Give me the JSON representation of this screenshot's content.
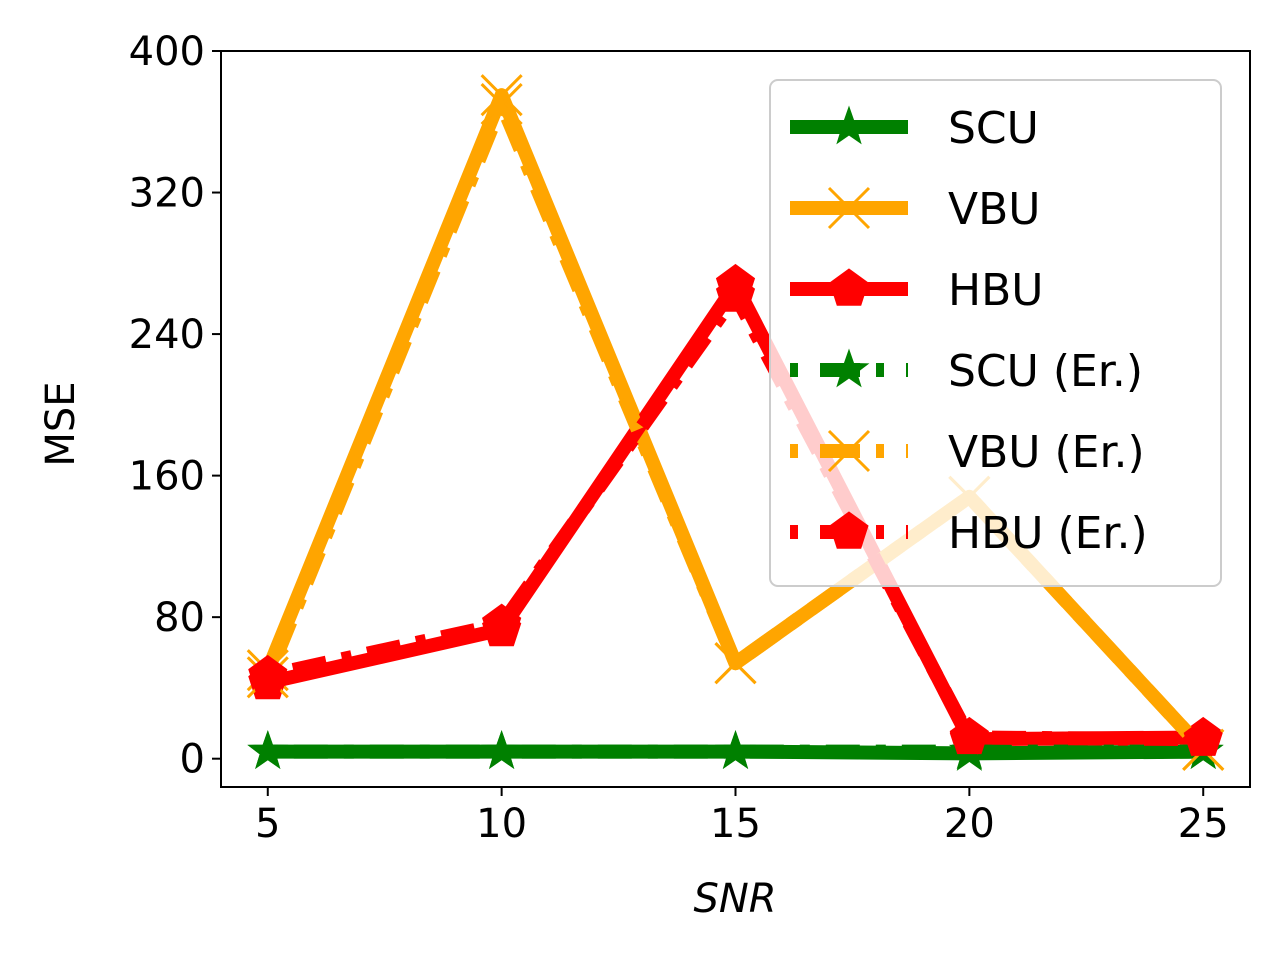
{
  "chart_data": {
    "type": "line",
    "title": "",
    "xlabel": "SNR",
    "ylabel": "MSE",
    "x": [
      5,
      10,
      15,
      20,
      25
    ],
    "xlim": [
      4,
      26
    ],
    "ylim": [
      -16,
      400
    ],
    "xticks": [
      5,
      10,
      15,
      20,
      25
    ],
    "yticks": [
      0,
      80,
      160,
      240,
      320,
      400
    ],
    "grid": false,
    "legend_position": "top-right",
    "series": [
      {
        "name": "SCU",
        "values": [
          4,
          4,
          4,
          3,
          4
        ],
        "color": "#008000",
        "line": "solid",
        "marker": "star"
      },
      {
        "name": "VBU",
        "values": [
          50,
          375,
          54,
          148,
          5
        ],
        "color": "#FFA500",
        "line": "solid",
        "marker": "x"
      },
      {
        "name": "HBU",
        "values": [
          43,
          73,
          268,
          11,
          12
        ],
        "color": "#FF0000",
        "line": "solid",
        "marker": "pentagon"
      },
      {
        "name": "SCU (Er.)",
        "values": [
          4,
          4,
          4,
          4,
          4
        ],
        "color": "#008000",
        "line": "dashdot",
        "marker": "star"
      },
      {
        "name": "VBU (Er.)",
        "values": [
          46,
          370,
          54,
          148,
          5
        ],
        "color": "#FFA500",
        "line": "dashdot",
        "marker": "x"
      },
      {
        "name": "HBU (Er.)",
        "values": [
          47,
          76,
          262,
          12,
          11
        ],
        "color": "#FF0000",
        "line": "dashdot",
        "marker": "pentagon"
      }
    ]
  }
}
